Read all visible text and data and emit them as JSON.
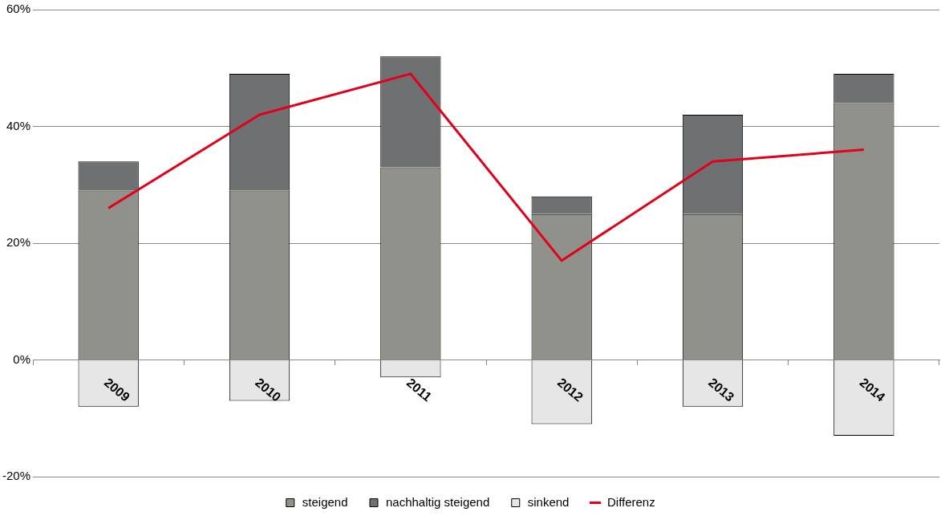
{
  "chart_data": {
    "type": "bar",
    "stacked": true,
    "categories": [
      "2009",
      "2010",
      "2011",
      "2012",
      "2013",
      "2014"
    ],
    "series": [
      {
        "name": "steigend",
        "color": "#8f918a",
        "values": [
          29,
          29,
          33,
          25,
          25,
          44
        ]
      },
      {
        "name": "nachhaltig steigend",
        "color": "#6f7072",
        "values": [
          5,
          20,
          19,
          3,
          17,
          5
        ]
      },
      {
        "name": "sinkend",
        "color": "#e6e6e6",
        "values": [
          -8,
          -7,
          -3,
          -11,
          -8,
          -13
        ]
      },
      {
        "name": "Differenz",
        "type": "line",
        "color": "#e2001a",
        "values": [
          26,
          42,
          49,
          17,
          34,
          36
        ]
      }
    ],
    "ylim": [
      -20,
      60
    ],
    "yticks": [
      {
        "value": -20,
        "label": "-20%"
      },
      {
        "value": 0,
        "label": "0%"
      },
      {
        "value": 20,
        "label": "20%"
      },
      {
        "value": 40,
        "label": "40%"
      },
      {
        "value": 60,
        "label": "60%"
      }
    ],
    "grid": "y",
    "legend": "bottom"
  }
}
